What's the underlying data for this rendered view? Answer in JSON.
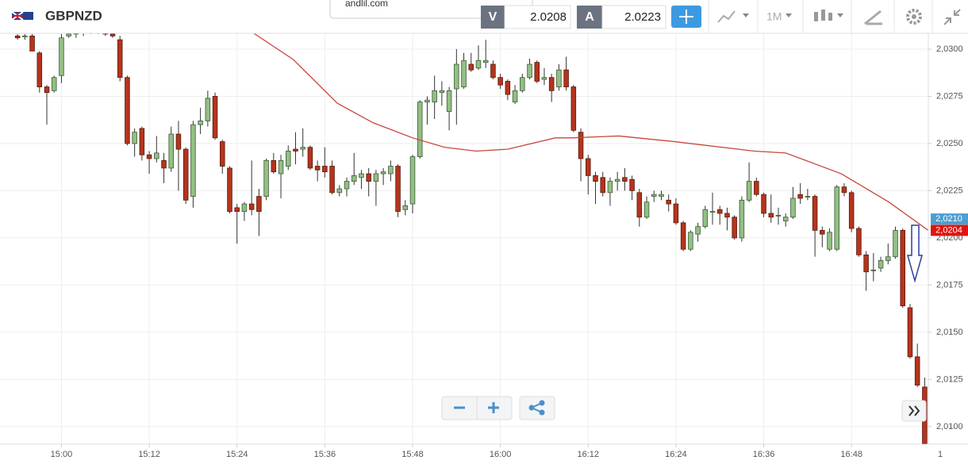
{
  "header": {
    "symbol": "GBPNZD",
    "url": "andlil.com",
    "bid_label": "V",
    "bid": "2.0208",
    "ask_label": "A",
    "ask": "2.0223",
    "timeframe": "1M"
  },
  "chart_data": {
    "type": "candlestick",
    "open": [
      2.0307,
      2.0307,
      2.0307,
      2.0298,
      2.028,
      2.0278,
      2.0286,
      2.0307,
      2.0308,
      2.0309,
      2.031,
      2.031,
      2.0309,
      2.0308,
      2.0305,
      2.0285,
      2.025,
      2.0258,
      2.0244,
      2.0242,
      2.0241,
      2.0237,
      2.0255,
      2.0247,
      2.0222,
      2.026,
      2.0262,
      2.0275,
      2.0251,
      2.0237,
      2.0216,
      2.0214,
      2.0218,
      2.0222,
      2.0222,
      2.0241,
      2.0234,
      2.0238,
      2.0247,
      2.0247,
      2.0248,
      2.0238,
      2.0238,
      2.0238,
      2.0224,
      2.0226,
      2.023,
      2.0232,
      2.0234,
      2.023,
      2.0234,
      2.0234,
      2.0238,
      2.0215,
      2.0218,
      2.0243,
      2.0272,
      2.0272,
      2.0277,
      2.0267,
      2.0279,
      2.028,
      2.0292,
      2.029,
      2.0293,
      2.0292,
      2.0285,
      2.0283,
      2.0272,
      2.0278,
      2.0285,
      2.0293,
      2.0284,
      2.0285,
      2.028,
      2.0289,
      2.028,
      2.0256,
      2.0242,
      2.0233,
      2.0232,
      2.0224,
      2.023,
      2.0232,
      2.0231,
      2.0224,
      2.0211,
      2.0222,
      2.0222,
      2.022,
      2.0218,
      2.0208,
      2.0194,
      2.0202,
      2.0206,
      2.0214,
      2.0215,
      2.0213,
      2.0211,
      2.02,
      2.022,
      2.023,
      2.0223,
      2.0213,
      2.0212,
      2.0209,
      2.0211,
      2.0223,
      2.0222,
      2.0222,
      2.0204,
      2.0194,
      2.0194,
      2.0227,
      2.0224,
      2.0205,
      2.0191,
      2.0183,
      2.0184,
      2.0188,
      2.019,
      2.0204,
      2.0163,
      2.0137,
      2.0121
    ],
    "high": [
      2.0308,
      2.0308,
      2.0308,
      2.0299,
      2.0281,
      2.0286,
      2.0308,
      2.0309,
      2.031,
      2.0311,
      2.0312,
      2.0312,
      2.0311,
      2.0309,
      2.0307,
      2.0286,
      2.0258,
      2.0259,
      2.0246,
      2.0254,
      2.0245,
      2.0259,
      2.0262,
      2.0248,
      2.0262,
      2.0269,
      2.0278,
      2.0277,
      2.0252,
      2.0238,
      2.0218,
      2.0219,
      2.0241,
      2.0226,
      2.0242,
      2.0245,
      2.0244,
      2.0249,
      2.0256,
      2.0258,
      2.0249,
      2.0241,
      2.0248,
      2.0241,
      2.0228,
      2.0232,
      2.0245,
      2.0236,
      2.0237,
      2.0236,
      2.0237,
      2.0241,
      2.0239,
      2.022,
      2.0244,
      2.0273,
      2.0275,
      2.0286,
      2.0283,
      2.028,
      2.03,
      2.0298,
      2.0298,
      2.0302,
      2.0305,
      2.0294,
      2.0287,
      2.0284,
      2.0281,
      2.0287,
      2.0295,
      2.0294,
      2.029,
      2.0287,
      2.0292,
      2.0296,
      2.0281,
      2.0258,
      2.0244,
      2.0235,
      2.0235,
      2.0232,
      2.0235,
      2.0237,
      2.0233,
      2.0226,
      2.0222,
      2.0225,
      2.0225,
      2.0223,
      2.0221,
      2.0209,
      2.0204,
      2.0208,
      2.0217,
      2.0224,
      2.0217,
      2.0216,
      2.0212,
      2.0222,
      2.024,
      2.0232,
      2.0224,
      2.0223,
      2.0216,
      2.0213,
      2.0227,
      2.0229,
      2.0226,
      2.0223,
      2.0206,
      2.0205,
      2.0228,
      2.0229,
      2.0225,
      2.0206,
      2.0193,
      2.0192,
      2.019,
      2.0197,
      2.0206,
      2.0205,
      2.0165,
      2.0144,
      2.0126
    ],
    "low": [
      2.0305,
      2.0305,
      2.0299,
      2.0277,
      2.026,
      2.0277,
      2.0282,
      2.0306,
      2.0306,
      2.0307,
      2.0308,
      2.0308,
      2.0307,
      2.0306,
      2.0283,
      2.0249,
      2.0243,
      2.0241,
      2.0234,
      2.024,
      2.0229,
      2.0235,
      2.0225,
      2.0218,
      2.0216,
      2.0255,
      2.0259,
      2.0252,
      2.0234,
      2.0213,
      2.0197,
      2.0209,
      2.0212,
      2.0201,
      2.022,
      2.0234,
      2.0221,
      2.0236,
      2.0239,
      2.0243,
      2.0236,
      2.023,
      2.0232,
      2.0223,
      2.0222,
      2.0222,
      2.0228,
      2.0226,
      2.0222,
      2.0217,
      2.0228,
      2.023,
      2.0211,
      2.0212,
      2.0213,
      2.0242,
      2.026,
      2.0263,
      2.027,
      2.0257,
      2.026,
      2.0279,
      2.0288,
      2.0289,
      2.029,
      2.0284,
      2.0279,
      2.0273,
      2.0271,
      2.0277,
      2.0284,
      2.0282,
      2.0281,
      2.0272,
      2.0278,
      2.0278,
      2.0256,
      2.023,
      2.0223,
      2.0218,
      2.0222,
      2.0217,
      2.0225,
      2.0225,
      2.022,
      2.0206,
      2.021,
      2.0219,
      2.022,
      2.0214,
      2.0207,
      2.0193,
      2.0193,
      2.0198,
      2.0205,
      2.0207,
      2.0207,
      2.0204,
      2.0199,
      2.0198,
      2.0219,
      2.0222,
      2.0211,
      2.0208,
      2.0207,
      2.0206,
      2.021,
      2.0218,
      2.022,
      2.019,
      2.0195,
      2.0193,
      2.0193,
      2.0222,
      2.0203,
      2.019,
      2.0172,
      2.0177,
      2.0182,
      2.0186,
      2.0189,
      2.0163,
      2.0136,
      2.0121,
      2.009
    ],
    "close": [
      2.0306,
      2.0307,
      2.0299,
      2.028,
      2.0277,
      2.0285,
      2.0306,
      2.0308,
      2.0309,
      2.031,
      2.031,
      2.0309,
      2.0308,
      2.0307,
      2.0285,
      2.025,
      2.0256,
      2.0244,
      2.0242,
      2.0245,
      2.0237,
      2.0255,
      2.0247,
      2.022,
      2.026,
      2.0262,
      2.0274,
      2.0253,
      2.0238,
      2.0214,
      2.0214,
      2.0218,
      2.0215,
      2.0214,
      2.0241,
      2.0235,
      2.0241,
      2.0246,
      2.0246,
      2.0248,
      2.0237,
      2.0236,
      2.0235,
      2.0224,
      2.0226,
      2.023,
      2.0233,
      2.0234,
      2.023,
      2.0234,
      2.0235,
      2.0238,
      2.0214,
      2.0217,
      2.0243,
      2.0272,
      2.0273,
      2.0278,
      2.0278,
      2.0278,
      2.0292,
      2.0294,
      2.0289,
      2.0294,
      2.0294,
      2.0285,
      2.0281,
      2.0276,
      2.0278,
      2.0285,
      2.0292,
      2.0283,
      2.0285,
      2.0278,
      2.0289,
      2.028,
      2.0257,
      2.0242,
      2.0233,
      2.023,
      2.0224,
      2.023,
      2.0231,
      2.023,
      2.0225,
      2.0211,
      2.0219,
      2.0223,
      2.0223,
      2.0218,
      2.0208,
      2.0194,
      2.0203,
      2.0206,
      2.0215,
      2.0214,
      2.0213,
      2.0211,
      2.02,
      2.022,
      2.023,
      2.0223,
      2.0213,
      2.0211,
      2.0212,
      2.0211,
      2.0221,
      2.0221,
      2.0222,
      2.0204,
      2.0202,
      2.0203,
      2.0227,
      2.0224,
      2.0205,
      2.0191,
      2.0182,
      2.0183,
      2.0188,
      2.019,
      2.0204,
      2.0164,
      2.0137,
      2.0122,
      2.0091
    ],
    "up_color": "#93bf85",
    "down_color": "#b5341c",
    "ma": {
      "x": [
        32.3,
        37.7,
        43.7,
        48.6,
        54.0,
        58.4,
        62.7,
        67.0,
        73.5,
        75.7,
        82.2,
        89.8,
        100.7,
        105.0,
        112.6,
        119.1,
        124.5
      ],
      "values": [
        2.03084,
        2.02945,
        2.02714,
        2.0261,
        2.0253,
        2.0248,
        2.0246,
        2.0247,
        2.0253,
        2.0253,
        2.0254,
        2.0251,
        2.0246,
        2.0245,
        2.0234,
        2.0219,
        2.0204
      ],
      "color": "#c9463d"
    },
    "xlim": [
      -2.4,
      124.5
    ],
    "ylim": [
      2.00907,
      2.03084
    ],
    "xticks": [
      {
        "value": 6,
        "label": "15:00"
      },
      {
        "value": 18,
        "label": "15:12"
      },
      {
        "value": 30,
        "label": "15:24"
      },
      {
        "value": 42,
        "label": "15:36"
      },
      {
        "value": 54,
        "label": "15:48"
      },
      {
        "value": 66,
        "label": "16:00"
      },
      {
        "value": 78,
        "label": "16:12"
      },
      {
        "value": 90,
        "label": "16:24"
      },
      {
        "value": 102,
        "label": "16:36"
      },
      {
        "value": 114,
        "label": "16:48"
      }
    ],
    "yticks": [
      {
        "value": 2.01,
        "label": "2,0100"
      },
      {
        "value": 2.0125,
        "label": "2,0125"
      },
      {
        "value": 2.015,
        "label": "2,0150"
      },
      {
        "value": 2.0175,
        "label": "2,0175"
      },
      {
        "value": 2.02,
        "label": "2,0200"
      },
      {
        "value": 2.0225,
        "label": "2,0225"
      },
      {
        "value": 2.025,
        "label": "2,0250"
      },
      {
        "value": 2.0275,
        "label": "2,0275"
      },
      {
        "value": 2.03,
        "label": "2,0300"
      }
    ],
    "price_labels": [
      {
        "value": 2.021,
        "label": "2,0210",
        "color": "#4a9fd4"
      },
      {
        "value": 2.0204,
        "label": "2,0204",
        "color": "#e0140c"
      }
    ],
    "corner_label": "1",
    "grid": true
  }
}
